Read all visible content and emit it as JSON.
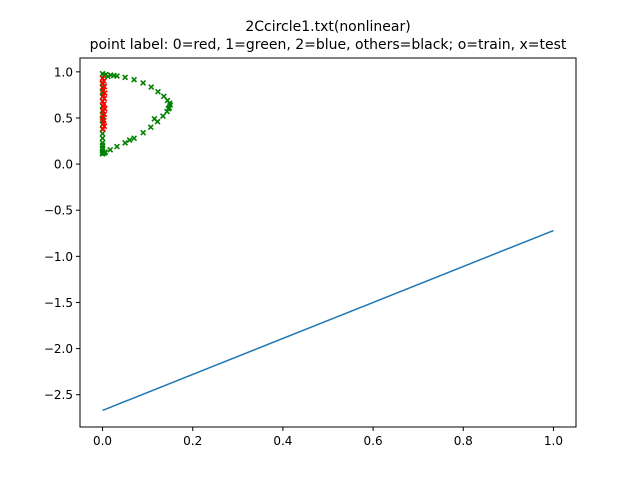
{
  "chart_data": {
    "type": "scatter",
    "title": "2Ccircle1.txt(nonlinear)",
    "subtitle": "point label: 0=red, 1=green, 2=blue, others=black; o=train, x=test",
    "xlabel": "",
    "ylabel": "",
    "xlim": [
      -0.05,
      1.05
    ],
    "ylim": [
      -2.85,
      1.15
    ],
    "grid": false,
    "x_ticks": [
      0.0,
      0.2,
      0.4,
      0.6,
      0.8,
      1.0
    ],
    "x_tick_labels": [
      "0.0",
      "0.2",
      "0.4",
      "0.6",
      "0.8",
      "1.0"
    ],
    "y_ticks": [
      1.0,
      0.5,
      0.0,
      -0.5,
      -1.0,
      -1.5,
      -2.0,
      -2.5
    ],
    "y_tick_labels": [
      "1.0",
      "0.5",
      "0.0",
      "−0.5",
      "−1.0",
      "−1.5",
      "−2.0",
      "−2.5"
    ],
    "colors": {
      "label_0": "#ff0000",
      "label_1": "#008000",
      "line": "#1f77b4",
      "axis": "#000000"
    },
    "series": [
      {
        "label": "1",
        "marker": "x",
        "color": "#008000",
        "x": [
          0.0,
          0.0,
          0.0,
          0.0,
          0.0,
          0.0,
          0.0,
          0.0,
          0.0,
          0.0,
          0.0,
          0.0,
          0.0,
          0.0,
          0.0,
          0.0,
          0.0,
          0.0,
          0.0,
          0.0,
          0.0,
          0.007,
          0.018,
          0.032,
          0.05,
          0.07,
          0.09,
          0.108,
          0.123,
          0.136,
          0.144,
          0.149,
          0.15,
          0.148,
          0.143,
          0.134,
          0.122,
          0.107,
          0.09,
          0.07,
          0.05,
          0.032,
          0.017,
          0.006,
          0.003,
          0.004,
          0.012,
          0.025,
          0.06,
          0.115,
          0.146
        ],
        "y": [
          0.98,
          0.93,
          0.88,
          0.83,
          0.78,
          0.73,
          0.68,
          0.63,
          0.58,
          0.53,
          0.48,
          0.43,
          0.38,
          0.33,
          0.28,
          0.23,
          0.2,
          0.17,
          0.14,
          0.12,
          0.11,
          0.97,
          0.965,
          0.955,
          0.94,
          0.915,
          0.88,
          0.835,
          0.785,
          0.735,
          0.69,
          0.66,
          0.64,
          0.61,
          0.57,
          0.52,
          0.46,
          0.4,
          0.34,
          0.28,
          0.23,
          0.19,
          0.155,
          0.13,
          0.96,
          0.12,
          0.95,
          0.96,
          0.26,
          0.49,
          0.6
        ]
      },
      {
        "label": "0",
        "marker": "x",
        "color": "#ff0000",
        "x": [
          0.0,
          0.003,
          0.0,
          0.004,
          0.001,
          0.005,
          0.002,
          0.004,
          0.0,
          0.003,
          0.002,
          0.005,
          0.001,
          0.004,
          0.0,
          0.003,
          0.002,
          0.004,
          0.001
        ],
        "y": [
          0.93,
          0.9,
          0.87,
          0.84,
          0.8,
          0.77,
          0.74,
          0.71,
          0.68,
          0.65,
          0.62,
          0.6,
          0.57,
          0.54,
          0.5,
          0.47,
          0.44,
          0.41,
          0.38
        ]
      }
    ],
    "line": {
      "color": "#1f77b4",
      "x": [
        0.0,
        1.0
      ],
      "y": [
        -2.67,
        -0.72
      ]
    }
  }
}
